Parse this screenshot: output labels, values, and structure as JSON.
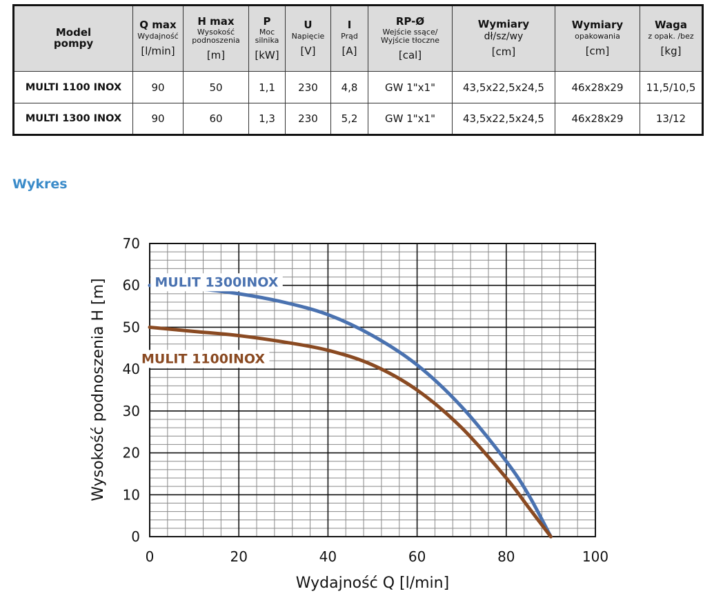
{
  "table": {
    "headers": [
      {
        "main": "Model\npompy",
        "sub": "",
        "unit": ""
      },
      {
        "main": "Q max",
        "sub": "Wydajność",
        "unit": "[l/min]"
      },
      {
        "main": "H max",
        "sub": "Wysokość podnoszenia",
        "unit": "[m]"
      },
      {
        "main": "P",
        "sub": "Moc silnika",
        "unit": "[kW]"
      },
      {
        "main": "U",
        "sub": "Napięcie",
        "unit": "[V]"
      },
      {
        "main": "I",
        "sub": "Prąd",
        "unit": "[A]"
      },
      {
        "main": "RP-Ø",
        "sub": "Wejście ssące/ Wyjście tłoczne",
        "unit": "[cal]"
      },
      {
        "main": "Wymiary",
        "sub": "dł/sz/wy",
        "unit": "[cm]"
      },
      {
        "main": "Wymiary",
        "sub": "opakowania",
        "unit": "[cm]"
      },
      {
        "main": "Waga",
        "sub": "z opak. /bez",
        "unit": "[kg]"
      }
    ],
    "rows": [
      [
        "MULTI 1100 INOX",
        "90",
        "50",
        "1,1",
        "230",
        "4,8",
        "GW 1\"x1\"",
        "43,5x22,5x24,5",
        "46x28x29",
        "11,5/10,5"
      ],
      [
        "MULTI 1300 INOX",
        "90",
        "60",
        "1,3",
        "230",
        "5,2",
        "GW 1\"x1\"",
        "43,5x22,5x24,5",
        "46x28x29",
        "13/12"
      ]
    ]
  },
  "section_title": "Wykres",
  "chart_data": {
    "type": "line",
    "title": "",
    "xlabel": "Wydajność Q [l/min]",
    "ylabel": "Wysokość podnoszenia H [m]",
    "xlim": [
      0,
      100
    ],
    "ylim": [
      0,
      70
    ],
    "xticks": [
      "0",
      "20",
      "40",
      "60",
      "80",
      "100"
    ],
    "yticks": [
      "0",
      "10",
      "20",
      "30",
      "40",
      "50",
      "60",
      "70"
    ],
    "grid": true,
    "series": [
      {
        "name": "MULIT 1300INOX",
        "color": "#4a72b0",
        "x": [
          0,
          10,
          20,
          30,
          40,
          50,
          60,
          70,
          80,
          85,
          90
        ],
        "y": [
          60,
          59.3,
          58,
          56,
          53,
          48,
          41,
          31,
          18,
          10,
          0
        ]
      },
      {
        "name": "MULIT 1100INOX",
        "color": "#8a4a22",
        "x": [
          0,
          10,
          20,
          30,
          40,
          50,
          60,
          70,
          80,
          85,
          90
        ],
        "y": [
          50,
          49,
          48,
          46.5,
          44.5,
          41,
          35,
          26,
          14,
          7,
          0
        ]
      }
    ]
  }
}
